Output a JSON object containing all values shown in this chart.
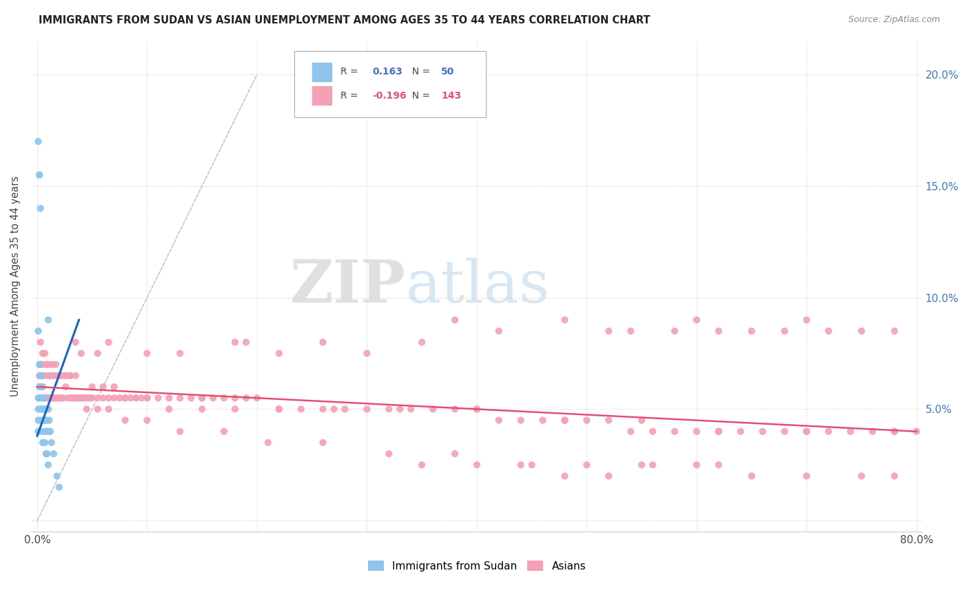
{
  "title": "IMMIGRANTS FROM SUDAN VS ASIAN UNEMPLOYMENT AMONG AGES 35 TO 44 YEARS CORRELATION CHART",
  "source": "Source: ZipAtlas.com",
  "ylabel": "Unemployment Among Ages 35 to 44 years",
  "watermark_zip": "ZIP",
  "watermark_atlas": "atlas",
  "xlim": [
    -0.005,
    0.805
  ],
  "ylim": [
    -0.005,
    0.215
  ],
  "xtick_positions": [
    0.0,
    0.1,
    0.2,
    0.3,
    0.4,
    0.5,
    0.6,
    0.7,
    0.8
  ],
  "xticklabels": [
    "0.0%",
    "",
    "",
    "",
    "",
    "",
    "",
    "",
    "80.0%"
  ],
  "ytick_positions": [
    0.0,
    0.05,
    0.1,
    0.15,
    0.2
  ],
  "yticklabels_right": [
    "",
    "5.0%",
    "10.0%",
    "15.0%",
    "20.0%"
  ],
  "sudan_color": "#8fc4ed",
  "asian_color": "#f4a0b5",
  "sudan_trend_color": "#1565c0",
  "asian_trend_color": "#e05070",
  "diag_line_color": "#aabfcc",
  "legend_sudan_R": "0.163",
  "legend_sudan_N": "50",
  "legend_asian_R": "-0.196",
  "legend_asian_N": "143",
  "sudan_x": [
    0.001,
    0.001,
    0.001,
    0.001,
    0.001,
    0.002,
    0.002,
    0.002,
    0.002,
    0.003,
    0.003,
    0.003,
    0.003,
    0.004,
    0.004,
    0.004,
    0.005,
    0.005,
    0.005,
    0.006,
    0.006,
    0.006,
    0.007,
    0.007,
    0.007,
    0.008,
    0.008,
    0.008,
    0.009,
    0.009,
    0.009,
    0.01,
    0.01,
    0.01,
    0.011,
    0.012,
    0.013,
    0.015,
    0.018,
    0.02,
    0.001,
    0.002,
    0.003,
    0.004,
    0.005,
    0.006,
    0.007,
    0.008,
    0.009,
    0.01
  ],
  "sudan_y": [
    0.17,
    0.055,
    0.05,
    0.045,
    0.04,
    0.155,
    0.155,
    0.06,
    0.055,
    0.14,
    0.065,
    0.055,
    0.05,
    0.065,
    0.06,
    0.05,
    0.055,
    0.05,
    0.045,
    0.055,
    0.05,
    0.045,
    0.05,
    0.045,
    0.04,
    0.05,
    0.045,
    0.04,
    0.05,
    0.045,
    0.04,
    0.09,
    0.05,
    0.04,
    0.045,
    0.04,
    0.035,
    0.03,
    0.02,
    0.015,
    0.085,
    0.07,
    0.045,
    0.04,
    0.035,
    0.035,
    0.035,
    0.03,
    0.03,
    0.025
  ],
  "asian_x": [
    0.002,
    0.003,
    0.004,
    0.005,
    0.005,
    0.006,
    0.007,
    0.008,
    0.009,
    0.01,
    0.011,
    0.012,
    0.013,
    0.014,
    0.015,
    0.016,
    0.017,
    0.018,
    0.019,
    0.02,
    0.022,
    0.024,
    0.026,
    0.028,
    0.03,
    0.032,
    0.034,
    0.036,
    0.038,
    0.04,
    0.042,
    0.044,
    0.046,
    0.048,
    0.05,
    0.055,
    0.06,
    0.065,
    0.07,
    0.075,
    0.08,
    0.085,
    0.09,
    0.095,
    0.1,
    0.11,
    0.12,
    0.13,
    0.14,
    0.15,
    0.16,
    0.17,
    0.18,
    0.19,
    0.2,
    0.22,
    0.24,
    0.26,
    0.28,
    0.3,
    0.32,
    0.34,
    0.36,
    0.38,
    0.4,
    0.42,
    0.44,
    0.46,
    0.48,
    0.5,
    0.52,
    0.54,
    0.56,
    0.58,
    0.6,
    0.62,
    0.64,
    0.66,
    0.68,
    0.7,
    0.72,
    0.74,
    0.76,
    0.78,
    0.8,
    0.004,
    0.006,
    0.008,
    0.01,
    0.012,
    0.015,
    0.018,
    0.022,
    0.026,
    0.03,
    0.035,
    0.04,
    0.05,
    0.06,
    0.07,
    0.08,
    0.09,
    0.1,
    0.12,
    0.15,
    0.18,
    0.22,
    0.27,
    0.33,
    0.4,
    0.48,
    0.55,
    0.62,
    0.7,
    0.78,
    0.003,
    0.005,
    0.007,
    0.009,
    0.011,
    0.014,
    0.017,
    0.021,
    0.025,
    0.03,
    0.038,
    0.045,
    0.055,
    0.065,
    0.08,
    0.1,
    0.13,
    0.17,
    0.21,
    0.26,
    0.32,
    0.38,
    0.45
  ],
  "asian_y": [
    0.065,
    0.07,
    0.065,
    0.06,
    0.055,
    0.055,
    0.055,
    0.055,
    0.055,
    0.055,
    0.055,
    0.055,
    0.055,
    0.055,
    0.055,
    0.055,
    0.055,
    0.055,
    0.055,
    0.055,
    0.055,
    0.055,
    0.06,
    0.055,
    0.055,
    0.055,
    0.055,
    0.055,
    0.055,
    0.055,
    0.055,
    0.055,
    0.055,
    0.055,
    0.055,
    0.055,
    0.055,
    0.055,
    0.055,
    0.055,
    0.055,
    0.055,
    0.055,
    0.055,
    0.055,
    0.055,
    0.055,
    0.055,
    0.055,
    0.055,
    0.055,
    0.055,
    0.055,
    0.055,
    0.055,
    0.05,
    0.05,
    0.05,
    0.05,
    0.05,
    0.05,
    0.05,
    0.05,
    0.05,
    0.05,
    0.045,
    0.045,
    0.045,
    0.045,
    0.045,
    0.045,
    0.04,
    0.04,
    0.04,
    0.04,
    0.04,
    0.04,
    0.04,
    0.04,
    0.04,
    0.04,
    0.04,
    0.04,
    0.04,
    0.04,
    0.07,
    0.065,
    0.07,
    0.065,
    0.065,
    0.065,
    0.065,
    0.065,
    0.065,
    0.065,
    0.065,
    0.055,
    0.06,
    0.06,
    0.06,
    0.055,
    0.055,
    0.055,
    0.05,
    0.05,
    0.05,
    0.05,
    0.05,
    0.05,
    0.05,
    0.045,
    0.045,
    0.04,
    0.04,
    0.04,
    0.08,
    0.075,
    0.075,
    0.07,
    0.07,
    0.07,
    0.07,
    0.065,
    0.065,
    0.065,
    0.055,
    0.05,
    0.05,
    0.05,
    0.045,
    0.045,
    0.04,
    0.04,
    0.035,
    0.035,
    0.03,
    0.03,
    0.025
  ],
  "asian_y_extra_high": [
    [
      0.035,
      0.08
    ],
    [
      0.04,
      0.075
    ],
    [
      0.055,
      0.075
    ],
    [
      0.065,
      0.08
    ],
    [
      0.1,
      0.075
    ],
    [
      0.13,
      0.075
    ],
    [
      0.15,
      0.055
    ],
    [
      0.18,
      0.08
    ],
    [
      0.19,
      0.08
    ],
    [
      0.22,
      0.075
    ],
    [
      0.26,
      0.08
    ],
    [
      0.3,
      0.075
    ],
    [
      0.35,
      0.08
    ],
    [
      0.38,
      0.09
    ],
    [
      0.42,
      0.085
    ],
    [
      0.48,
      0.09
    ],
    [
      0.52,
      0.085
    ],
    [
      0.54,
      0.085
    ],
    [
      0.58,
      0.085
    ],
    [
      0.6,
      0.09
    ],
    [
      0.62,
      0.085
    ],
    [
      0.65,
      0.085
    ],
    [
      0.68,
      0.085
    ],
    [
      0.7,
      0.09
    ],
    [
      0.72,
      0.085
    ],
    [
      0.75,
      0.085
    ],
    [
      0.78,
      0.085
    ],
    [
      0.35,
      0.025
    ],
    [
      0.4,
      0.025
    ],
    [
      0.44,
      0.025
    ],
    [
      0.5,
      0.025
    ],
    [
      0.55,
      0.025
    ],
    [
      0.6,
      0.025
    ],
    [
      0.65,
      0.02
    ],
    [
      0.7,
      0.02
    ],
    [
      0.75,
      0.02
    ],
    [
      0.78,
      0.02
    ],
    [
      0.48,
      0.02
    ],
    [
      0.52,
      0.02
    ],
    [
      0.56,
      0.025
    ],
    [
      0.62,
      0.025
    ]
  ],
  "sudan_trend_x": [
    0.0,
    0.038
  ],
  "sudan_trend_y": [
    0.038,
    0.09
  ],
  "asian_trend_x": [
    0.0,
    0.8
  ],
  "asian_trend_y": [
    0.06,
    0.04
  ]
}
